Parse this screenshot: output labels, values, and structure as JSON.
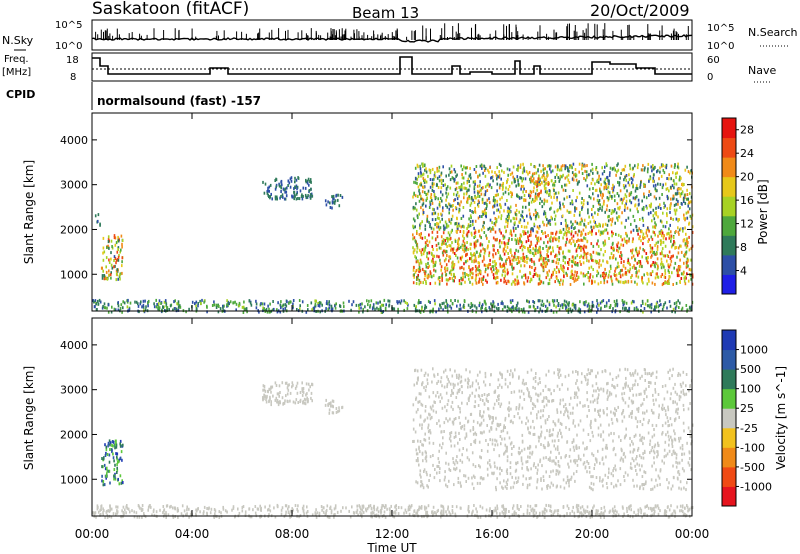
{
  "header": {
    "station": "Saskatoon (fitACF)",
    "beam": "Beam 13",
    "date": "20/Oct/2009"
  },
  "panels": {
    "nsky_label": "N.Sky",
    "nsky_ticks": [
      "10^5",
      "10^0"
    ],
    "nsearch_label": "N.Search",
    "nsearch_ticks": [
      "10^5",
      "10^0"
    ],
    "freq_label": "Freq.",
    "freq_unit": "[MHz]",
    "freq_ticks": [
      "18",
      "8"
    ],
    "nave_label": "Nave",
    "nave_ticks": [
      "60",
      "0"
    ],
    "cpid_label": "CPID",
    "cpid_text": "normalsound (fast) -157"
  },
  "colors": {
    "power_scale": [
      "#1f1fe6",
      "#2d4fa6",
      "#2f7a5a",
      "#4ea83c",
      "#a7d224",
      "#e6c81a",
      "#f08a18",
      "#ee4a14",
      "#e6140f"
    ],
    "velocity_scale": [
      "#e6141e",
      "#f04a14",
      "#f08a18",
      "#f2c21e",
      "#c8c8c0",
      "#5cc83a",
      "#2f7a5a",
      "#2d5aa6",
      "#1f3ab4"
    ]
  },
  "chart_data": [
    {
      "type": "heatmap",
      "title": "",
      "quantity": "Power",
      "ylabel": "Slant Range [km]",
      "xlabel": "",
      "x_ticks": [
        "00:00",
        "04:00",
        "08:00",
        "12:00",
        "16:00",
        "20:00",
        "00:00"
      ],
      "x_range_hours": [
        0,
        24
      ],
      "y_ticks": [
        "1000",
        "2000",
        "3000",
        "4000"
      ],
      "ylim": [
        180,
        4600
      ],
      "colorbar_label": "Power [dB]",
      "colorbar_ticks": [
        "4",
        "8",
        "12",
        "16",
        "20",
        "24",
        "28"
      ],
      "crange": [
        0,
        30
      ],
      "regions": [
        {
          "t": [
            0.0,
            24.0
          ],
          "r": [
            180,
            450
          ],
          "v": [
            4,
            14
          ]
        },
        {
          "t": [
            0.1,
            0.3
          ],
          "r": [
            2100,
            2400
          ],
          "v": [
            5,
            10
          ]
        },
        {
          "t": [
            0.35,
            1.2
          ],
          "r": [
            900,
            1900
          ],
          "v": [
            6,
            26
          ]
        },
        {
          "t": [
            6.8,
            8.8
          ],
          "r": [
            2700,
            3200
          ],
          "v": [
            4,
            10
          ]
        },
        {
          "t": [
            9.3,
            10.0
          ],
          "r": [
            2500,
            2800
          ],
          "v": [
            4,
            10
          ]
        },
        {
          "t": [
            12.8,
            24.0
          ],
          "r": [
            2000,
            3500
          ],
          "v": [
            4,
            22
          ]
        },
        {
          "t": [
            12.8,
            24.0
          ],
          "r": [
            800,
            2000
          ],
          "v": [
            10,
            28
          ]
        },
        {
          "t": [
            17.5,
            18.3
          ],
          "r": [
            2750,
            3250
          ],
          "v": [
            14,
            26
          ]
        }
      ]
    },
    {
      "type": "heatmap",
      "title": "",
      "quantity": "Velocity",
      "ylabel": "Slant Range [km]",
      "xlabel": "Time UT",
      "x_ticks": [
        "00:00",
        "04:00",
        "08:00",
        "12:00",
        "16:00",
        "20:00",
        "00:00"
      ],
      "x_range_hours": [
        0,
        24
      ],
      "y_ticks": [
        "1000",
        "2000",
        "3000",
        "4000"
      ],
      "ylim": [
        180,
        4600
      ],
      "colorbar_label": "Velocity [m s^-1]",
      "colorbar_ticks": [
        "1000",
        "500",
        "100",
        "25",
        "-25",
        "-100",
        "-500",
        "-1000"
      ],
      "crange": [
        -1000,
        1000
      ],
      "regions": [
        {
          "t": [
            0.0,
            24.0
          ],
          "r": [
            180,
            450
          ],
          "v": [
            -100,
            100
          ]
        },
        {
          "t": [
            0.35,
            1.2
          ],
          "r": [
            900,
            1900
          ],
          "v": [
            100,
            1000
          ]
        },
        {
          "t": [
            6.8,
            8.8
          ],
          "r": [
            2700,
            3200
          ],
          "v": [
            -25,
            25
          ]
        },
        {
          "t": [
            9.3,
            10.0
          ],
          "r": [
            2500,
            2800
          ],
          "v": [
            -25,
            25
          ]
        },
        {
          "t": [
            12.8,
            24.0
          ],
          "r": [
            800,
            3500
          ],
          "v": [
            -25,
            25
          ]
        }
      ]
    }
  ]
}
